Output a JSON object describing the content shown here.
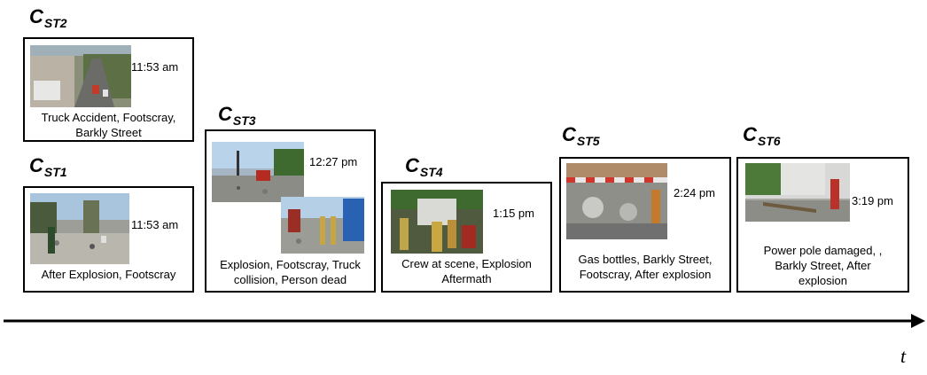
{
  "axis": {
    "label": "t"
  },
  "clusters": [
    {
      "id_main": "C",
      "id_sub": "ST2",
      "time": "11:53 am",
      "caption": "Truck Accident, Footscray,\nBarkly Street",
      "photo_alt": "Aerial view of street with truck accident"
    },
    {
      "id_main": "C",
      "id_sub": "ST1",
      "time": "11:53 am",
      "caption": "After Explosion, Footscray",
      "photo_alt": "Street with debris after explosion"
    },
    {
      "id_main": "C",
      "id_sub": "ST3",
      "time": "12:27 pm",
      "caption": "Explosion, Footscray, Truck\ncollision, Person  dead",
      "photo_alt": "Debris at intersection and firefighters"
    },
    {
      "id_main": "C",
      "id_sub": "ST4",
      "time": "1:15 pm",
      "caption": "Crew at scene, Explosion\nAftermath",
      "photo_alt": "Crew at scene"
    },
    {
      "id_main": "C",
      "id_sub": "ST5",
      "time": "2:24 pm",
      "caption": "Gas bottles, Barkly Street,\nFootscray, After explosion",
      "photo_alt": "Gas bottles behind barrier"
    },
    {
      "id_main": "C",
      "id_sub": "ST6",
      "time": "3:19 pm",
      "caption": "Power pole damaged, ,\nBarkly Street,  After\nexplosion",
      "photo_alt": "Damaged power pole on street"
    }
  ]
}
